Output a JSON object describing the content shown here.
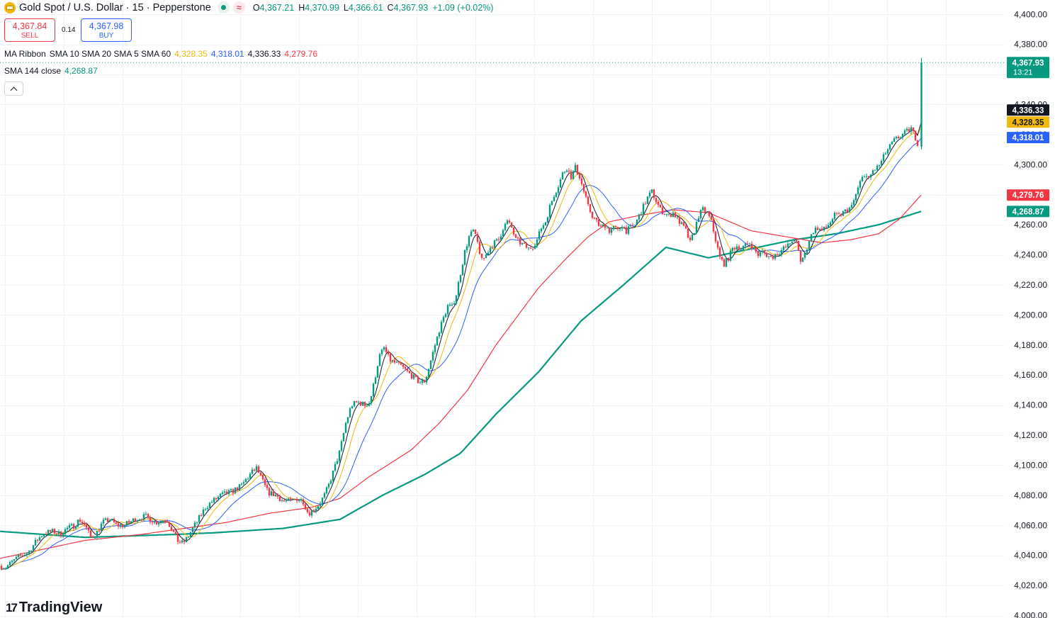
{
  "header": {
    "symbol_title": "Gold Spot / U.S. Dollar · 15 · Pepperstone",
    "ohlc": [
      {
        "k": "O",
        "v": "4,367.21"
      },
      {
        "k": "H",
        "v": "4,370.99"
      },
      {
        "k": "L",
        "v": "4,366.61"
      },
      {
        "k": "C",
        "v": "4,367.93"
      },
      {
        "k": "",
        "v": "+1.09 (+0.02%)"
      }
    ],
    "wave_glyph": "≈"
  },
  "trade": {
    "sell_price": "4,367.84",
    "sell_label": "SELL",
    "spread": "0.14",
    "buy_price": "4,367.98",
    "buy_label": "BUY"
  },
  "indicators": {
    "ribbon_name": "MA Ribbon",
    "ribbon_params": "SMA 10 SMA 20 SMA 5 SMA 60",
    "ribbon_values": [
      "4,328.35",
      "4,318.01",
      "4,336.33",
      "4,279.76"
    ],
    "sma144_name": "SMA 144 close",
    "sma144_value": "4,268.87"
  },
  "brand": {
    "name": "TradingView",
    "mark": "17"
  },
  "colors": {
    "up": "#089981",
    "down": "#f23645",
    "sma10": "#f0b90b",
    "sma20": "#2962ff",
    "sma5": "#131722",
    "sma60": "#f23645",
    "sma144": "#089981",
    "grid": "#f0f3fa"
  },
  "chart_data": {
    "type": "candlestick",
    "title": "Gold Spot / U.S. Dollar · 15 · Pepperstone",
    "interval": "15",
    "y_ticks": [
      "4,000.00",
      "4,020.00",
      "4,040.00",
      "4,060.00",
      "4,080.00",
      "4,100.00",
      "4,120.00",
      "4,140.00",
      "4,160.00",
      "4,180.00",
      "4,200.00",
      "4,220.00",
      "4,240.00",
      "4,260.00",
      "4,280.00",
      "4,300.00",
      "4,320.00",
      "4,340.00",
      "4,360.00",
      "4,380.00",
      "4,400.00"
    ],
    "ylim": [
      4000,
      4400
    ],
    "grid": true,
    "price_trajectory": [
      [
        0,
        4033
      ],
      [
        8,
        4032
      ],
      [
        18,
        4036
      ],
      [
        30,
        4040
      ],
      [
        40,
        4042
      ],
      [
        52,
        4050
      ],
      [
        62,
        4055
      ],
      [
        75,
        4056
      ],
      [
        85,
        4054
      ],
      [
        95,
        4058
      ],
      [
        105,
        4060
      ],
      [
        112,
        4064
      ],
      [
        120,
        4060
      ],
      [
        128,
        4052
      ],
      [
        135,
        4054
      ],
      [
        145,
        4062
      ],
      [
        155,
        4064
      ],
      [
        165,
        4060
      ],
      [
        175,
        4060
      ],
      [
        190,
        4064
      ],
      [
        205,
        4066
      ],
      [
        220,
        4062
      ],
      [
        235,
        4064
      ],
      [
        242,
        4058
      ],
      [
        250,
        4050
      ],
      [
        258,
        4048
      ],
      [
        265,
        4052
      ],
      [
        272,
        4058
      ],
      [
        280,
        4064
      ],
      [
        290,
        4072
      ],
      [
        300,
        4076
      ],
      [
        312,
        4080
      ],
      [
        325,
        4082
      ],
      [
        340,
        4086
      ],
      [
        355,
        4095
      ],
      [
        362,
        4098
      ],
      [
        370,
        4090
      ],
      [
        378,
        4082
      ],
      [
        390,
        4080
      ],
      [
        400,
        4076
      ],
      [
        410,
        4076
      ],
      [
        420,
        4078
      ],
      [
        428,
        4076
      ],
      [
        435,
        4068
      ],
      [
        442,
        4070
      ],
      [
        450,
        4074
      ],
      [
        458,
        4080
      ],
      [
        465,
        4088
      ],
      [
        472,
        4098
      ],
      [
        480,
        4110
      ],
      [
        488,
        4128
      ],
      [
        496,
        4140
      ],
      [
        505,
        4142
      ],
      [
        515,
        4140
      ],
      [
        522,
        4142
      ],
      [
        528,
        4155
      ],
      [
        535,
        4172
      ],
      [
        542,
        4178
      ],
      [
        550,
        4170
      ],
      [
        558,
        4168
      ],
      [
        566,
        4166
      ],
      [
        575,
        4162
      ],
      [
        585,
        4158
      ],
      [
        592,
        4155
      ],
      [
        600,
        4156
      ],
      [
        607,
        4168
      ],
      [
        614,
        4180
      ],
      [
        620,
        4190
      ],
      [
        626,
        4198
      ],
      [
        632,
        4206
      ],
      [
        638,
        4205
      ],
      [
        644,
        4214
      ],
      [
        650,
        4228
      ],
      [
        656,
        4242
      ],
      [
        662,
        4252
      ],
      [
        668,
        4256
      ],
      [
        674,
        4248
      ],
      [
        680,
        4236
      ],
      [
        686,
        4240
      ],
      [
        692,
        4245
      ],
      [
        698,
        4248
      ],
      [
        704,
        4250
      ],
      [
        710,
        4258
      ],
      [
        716,
        4262
      ],
      [
        722,
        4258
      ],
      [
        728,
        4250
      ],
      [
        734,
        4248
      ],
      [
        740,
        4246
      ],
      [
        746,
        4244
      ],
      [
        752,
        4246
      ],
      [
        758,
        4250
      ],
      [
        764,
        4258
      ],
      [
        770,
        4262
      ],
      [
        776,
        4272
      ],
      [
        782,
        4280
      ],
      [
        788,
        4286
      ],
      [
        794,
        4294
      ],
      [
        800,
        4298
      ],
      [
        806,
        4292
      ],
      [
        812,
        4298
      ],
      [
        818,
        4292
      ],
      [
        824,
        4282
      ],
      [
        830,
        4272
      ],
      [
        836,
        4266
      ],
      [
        842,
        4262
      ],
      [
        848,
        4258
      ],
      [
        854,
        4260
      ],
      [
        860,
        4256
      ],
      [
        866,
        4258
      ],
      [
        872,
        4256
      ],
      [
        878,
        4260
      ],
      [
        884,
        4256
      ],
      [
        890,
        4258
      ],
      [
        896,
        4260
      ],
      [
        902,
        4266
      ],
      [
        908,
        4272
      ],
      [
        914,
        4278
      ],
      [
        920,
        4282
      ],
      [
        926,
        4276
      ],
      [
        932,
        4270
      ],
      [
        938,
        4268
      ],
      [
        944,
        4266
      ],
      [
        950,
        4268
      ],
      [
        956,
        4264
      ],
      [
        962,
        4260
      ],
      [
        968,
        4256
      ],
      [
        974,
        4248
      ],
      [
        980,
        4256
      ],
      [
        986,
        4266
      ],
      [
        992,
        4270
      ],
      [
        998,
        4268
      ],
      [
        1004,
        4262
      ],
      [
        1010,
        4250
      ],
      [
        1016,
        4238
      ],
      [
        1022,
        4234
      ],
      [
        1028,
        4238
      ],
      [
        1034,
        4244
      ],
      [
        1040,
        4246
      ],
      [
        1046,
        4244
      ],
      [
        1052,
        4246
      ],
      [
        1058,
        4248
      ],
      [
        1064,
        4244
      ],
      [
        1070,
        4240
      ],
      [
        1076,
        4242
      ],
      [
        1082,
        4240
      ],
      [
        1088,
        4238
      ],
      [
        1094,
        4240
      ],
      [
        1100,
        4242
      ],
      [
        1106,
        4244
      ],
      [
        1112,
        4246
      ],
      [
        1118,
        4250
      ],
      [
        1124,
        4248
      ],
      [
        1130,
        4236
      ],
      [
        1136,
        4240
      ],
      [
        1142,
        4250
      ],
      [
        1148,
        4256
      ],
      [
        1154,
        4258
      ],
      [
        1160,
        4256
      ],
      [
        1166,
        4258
      ],
      [
        1172,
        4262
      ],
      [
        1178,
        4266
      ],
      [
        1184,
        4266
      ],
      [
        1190,
        4268
      ],
      [
        1196,
        4270
      ],
      [
        1202,
        4272
      ],
      [
        1208,
        4280
      ],
      [
        1214,
        4288
      ],
      [
        1220,
        4294
      ],
      [
        1226,
        4290
      ],
      [
        1232,
        4296
      ],
      [
        1238,
        4298
      ],
      [
        1244,
        4302
      ],
      [
        1250,
        4308
      ],
      [
        1256,
        4312
      ],
      [
        1262,
        4316
      ],
      [
        1268,
        4318
      ],
      [
        1274,
        4320
      ],
      [
        1280,
        4322
      ],
      [
        1286,
        4324
      ],
      [
        1292,
        4318
      ],
      [
        1297,
        4312
      ],
      [
        1300,
        4366
      ]
    ],
    "series": [
      {
        "name": "SMA 5",
        "value": "4,336.33"
      },
      {
        "name": "SMA 10",
        "value": "4,328.35"
      },
      {
        "name": "SMA 20",
        "value": "4,318.01"
      },
      {
        "name": "SMA 60",
        "value": "4,279.76"
      },
      {
        "name": "SMA 144 close",
        "value": "4,268.87"
      }
    ],
    "last_price": {
      "value": 4367.93,
      "label": "4,367.93",
      "countdown": "13:21"
    },
    "price_badges": [
      {
        "label": "4,336.33",
        "value": 4336.33,
        "bg": "#131722"
      },
      {
        "label": "4,328.35",
        "value": 4328.35,
        "bg": "#f0b90b"
      },
      {
        "label": "4,318.01",
        "value": 4318.01,
        "bg": "#2962ff"
      },
      {
        "label": "4,279.76",
        "value": 4279.76,
        "bg": "#f23645"
      },
      {
        "label": "4,268.87",
        "value": 4268.87,
        "bg": "#089981"
      }
    ],
    "sma144_trajectory": [
      [
        0,
        4056
      ],
      [
        120,
        4052
      ],
      [
        250,
        4054
      ],
      [
        300,
        4055
      ],
      [
        400,
        4058
      ],
      [
        480,
        4064
      ],
      [
        540,
        4080
      ],
      [
        600,
        4094
      ],
      [
        650,
        4108
      ],
      [
        700,
        4134
      ],
      [
        760,
        4162
      ],
      [
        820,
        4196
      ],
      [
        880,
        4220
      ],
      [
        940,
        4245
      ],
      [
        1000,
        4238
      ],
      [
        1060,
        4244
      ],
      [
        1120,
        4250
      ],
      [
        1180,
        4254
      ],
      [
        1240,
        4260
      ],
      [
        1300,
        4268.87
      ]
    ],
    "sma60_trajectory": [
      [
        0,
        4038
      ],
      [
        60,
        4044
      ],
      [
        120,
        4050
      ],
      [
        200,
        4054
      ],
      [
        260,
        4058
      ],
      [
        320,
        4062
      ],
      [
        380,
        4068
      ],
      [
        440,
        4072
      ],
      [
        480,
        4078
      ],
      [
        520,
        4092
      ],
      [
        580,
        4110
      ],
      [
        620,
        4128
      ],
      [
        660,
        4150
      ],
      [
        700,
        4180
      ],
      [
        760,
        4218
      ],
      [
        800,
        4238
      ],
      [
        830,
        4252
      ],
      [
        860,
        4262
      ],
      [
        900,
        4266
      ],
      [
        950,
        4270
      ],
      [
        1000,
        4268
      ],
      [
        1060,
        4256
      ],
      [
        1110,
        4252
      ],
      [
        1160,
        4248
      ],
      [
        1200,
        4250
      ],
      [
        1240,
        4254
      ],
      [
        1270,
        4264
      ],
      [
        1300,
        4279.76
      ]
    ]
  }
}
